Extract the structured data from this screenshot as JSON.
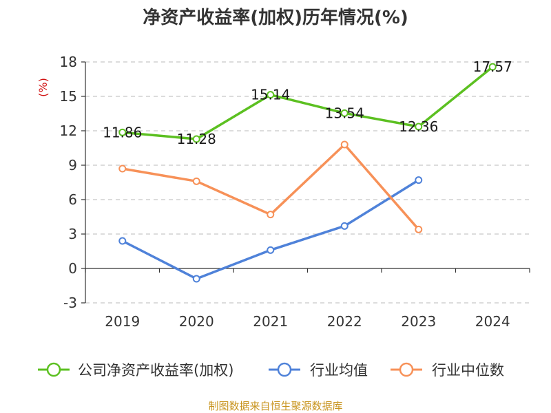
{
  "chart_data": {
    "type": "line",
    "title": "净资产收益率(加权)历年情况(%)",
    "ylabel": "(%)",
    "categories": [
      "2019",
      "2020",
      "2021",
      "2022",
      "2023",
      "2024"
    ],
    "ylim": [
      -3,
      18
    ],
    "yticks": [
      -3,
      0,
      3,
      6,
      9,
      12,
      15,
      18
    ],
    "grid": true,
    "legend_position": "bottom",
    "series": [
      {
        "name": "公司净资产收益率(加权)",
        "color": "#5cc021",
        "values": [
          11.86,
          11.28,
          15.14,
          13.54,
          12.36,
          17.57
        ],
        "labels": [
          "11.86",
          "11.28",
          "15.14",
          "13.54",
          "12.36",
          "17.57"
        ]
      },
      {
        "name": "行业均值",
        "color": "#4f82d9",
        "values": [
          2.4,
          -0.9,
          1.6,
          3.7,
          7.7,
          null
        ]
      },
      {
        "name": "行业中位数",
        "color": "#f79158",
        "values": [
          8.7,
          7.6,
          4.7,
          10.8,
          3.4,
          null
        ]
      }
    ]
  },
  "source_text": "制图数据来自恒生聚源数据库"
}
